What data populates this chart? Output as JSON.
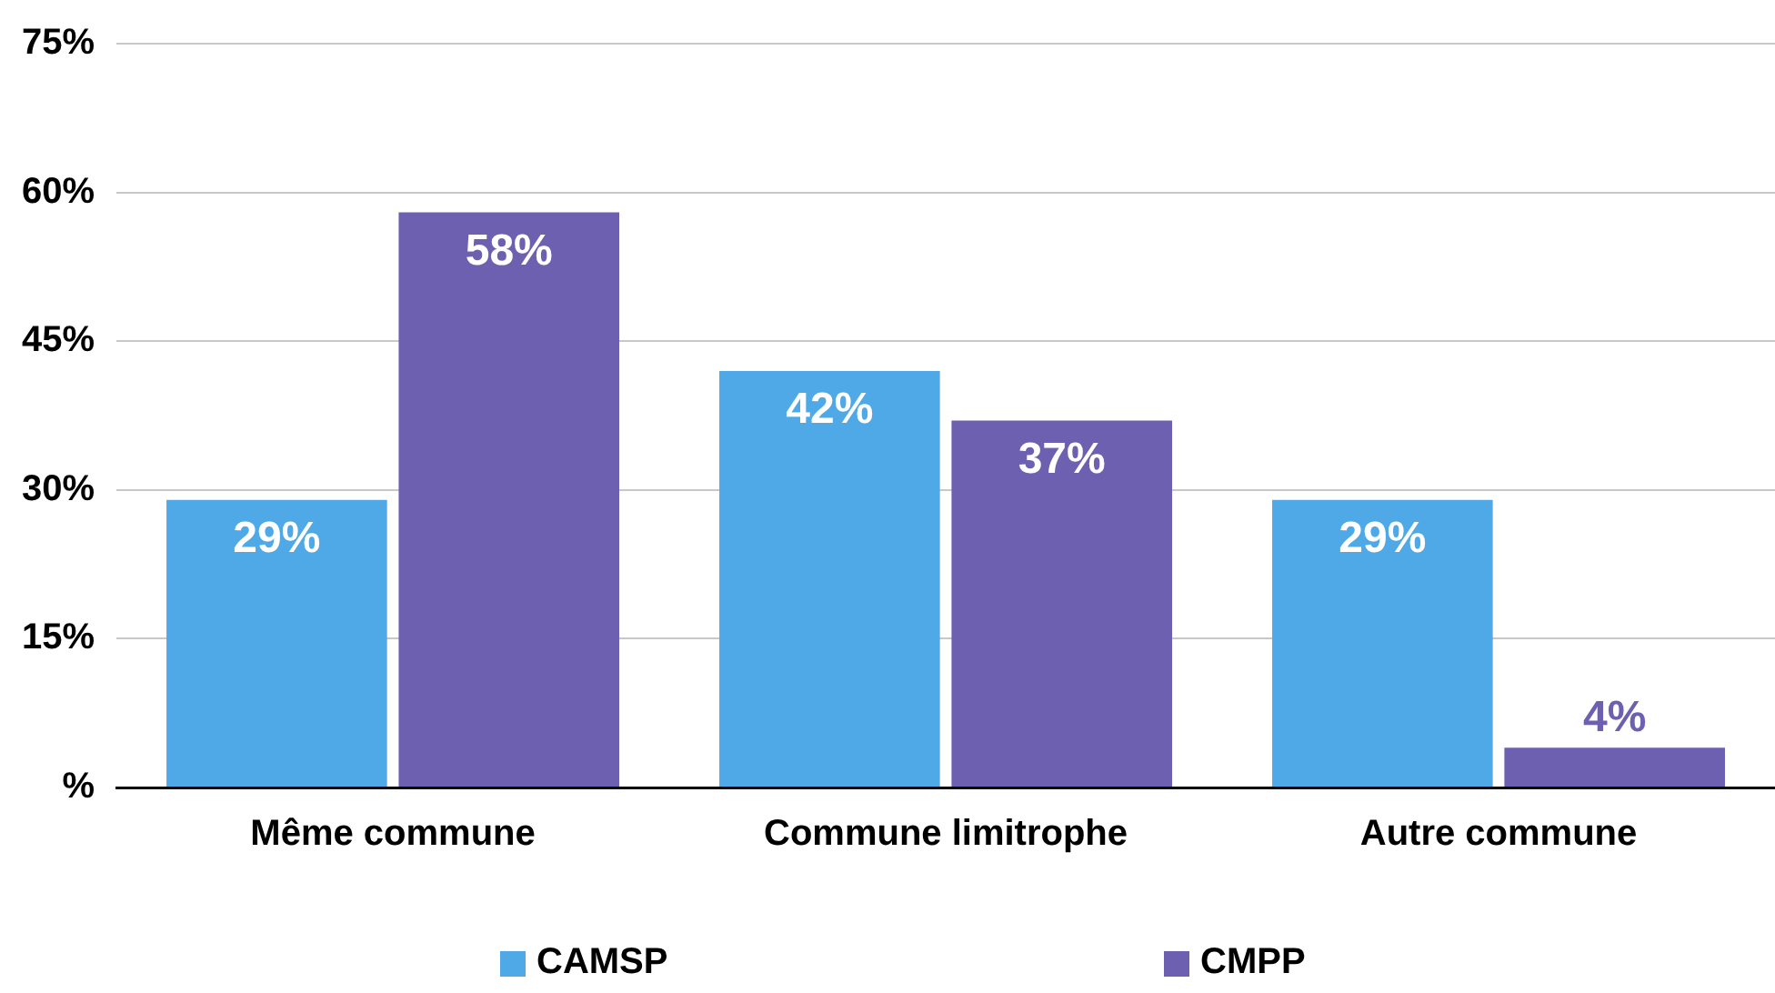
{
  "chart_data": {
    "type": "bar",
    "categories": [
      "Même commune",
      "Commune limitrophe",
      "Autre commune"
    ],
    "series": [
      {
        "name": "CAMSP",
        "color": "#4ea9e6",
        "values": [
          29,
          42,
          29
        ],
        "value_labels": [
          "29%",
          "42%",
          "29%"
        ]
      },
      {
        "name": "CMPP",
        "color": "#6e60b0",
        "values": [
          58,
          37,
          4
        ],
        "value_labels": [
          "58%",
          "37%",
          "4%"
        ]
      }
    ],
    "ylim": [
      0,
      75
    ],
    "yticks": [
      {
        "value": 0,
        "label": "%"
      },
      {
        "value": 15,
        "label": "15%"
      },
      {
        "value": 30,
        "label": "30%"
      },
      {
        "value": 45,
        "label": "45%"
      },
      {
        "value": 60,
        "label": "60%"
      },
      {
        "value": 75,
        "label": "75%"
      }
    ],
    "grid": "y",
    "legend": "bottom"
  }
}
